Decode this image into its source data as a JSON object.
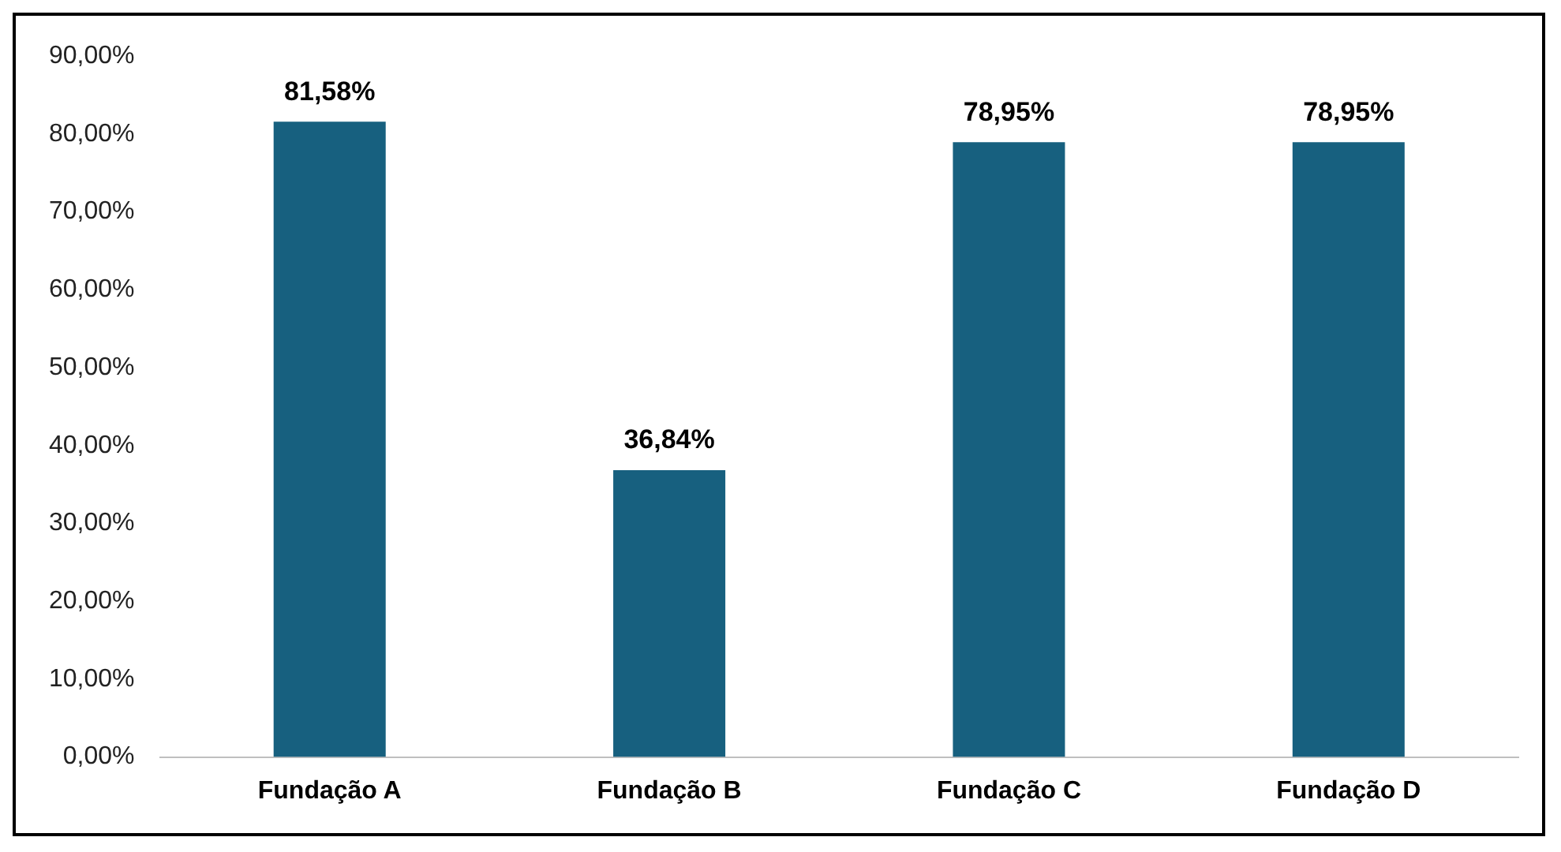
{
  "chart_data": {
    "type": "bar",
    "categories": [
      "Fundação A",
      "Fundação B",
      "Fundação C",
      "Fundação D"
    ],
    "values": [
      81.58,
      36.84,
      78.95,
      78.95
    ],
    "value_labels": [
      "81,58%",
      "36,84%",
      "78,95%",
      "78,95%"
    ],
    "color": "#17607f",
    "ylim": [
      0,
      90
    ],
    "yticks": [
      {
        "value": 0,
        "label": "0,00%"
      },
      {
        "value": 10,
        "label": "10,00%"
      },
      {
        "value": 20,
        "label": "20,00%"
      },
      {
        "value": 30,
        "label": "30,00%"
      },
      {
        "value": 40,
        "label": "40,00%"
      },
      {
        "value": 50,
        "label": "50,00%"
      },
      {
        "value": 60,
        "label": "60,00%"
      },
      {
        "value": 70,
        "label": "70,00%"
      },
      {
        "value": 80,
        "label": "80,00%"
      },
      {
        "value": 90,
        "label": "90,00%"
      }
    ],
    "grid": false,
    "legend": false
  }
}
